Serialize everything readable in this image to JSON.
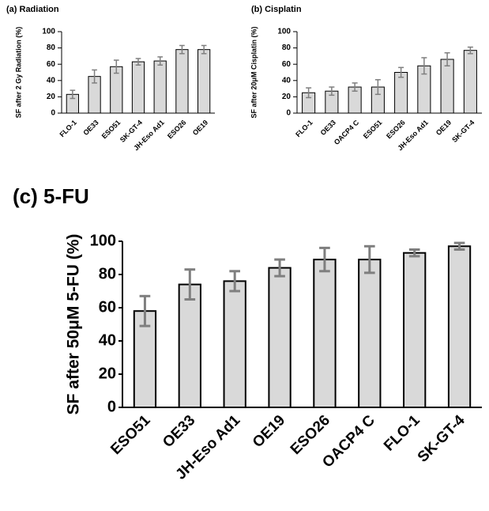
{
  "chart_data": [
    {
      "type": "bar",
      "title": "(a)  Radiation",
      "y_label": "SF after 2 Gy Radiation  (%)",
      "categories": [
        "FLO-1",
        "OE33",
        "ESO51",
        "SK-GT-4",
        "JH-Eso Ad1",
        "ESO26",
        "OE19"
      ],
      "values": [
        23,
        45,
        57,
        63,
        64,
        78,
        78
      ],
      "errors": [
        5,
        8,
        8,
        4,
        5,
        5,
        5
      ],
      "color": "#d9d9d9",
      "error_color": "#7f7f7f",
      "ylim": [
        0,
        100
      ],
      "yticks": [
        0,
        20,
        40,
        60,
        80,
        100
      ]
    },
    {
      "type": "bar",
      "title": "(b)  Cisplatin",
      "y_label": "SF after 20μM Cisplatin  (%)",
      "categories": [
        "FLO-1",
        "OE33",
        "OACP4 C",
        "ESO51",
        "ESO26",
        "JH-Eso Ad1",
        "OE19",
        "SK-GT-4"
      ],
      "values": [
        25,
        27,
        32,
        32,
        50,
        58,
        66,
        77
      ],
      "errors": [
        6,
        5,
        5,
        9,
        6,
        10,
        8,
        4
      ],
      "color": "#d9d9d9",
      "error_color": "#7f7f7f",
      "ylim": [
        0,
        100
      ],
      "yticks": [
        0,
        20,
        40,
        60,
        80,
        100
      ]
    },
    {
      "type": "bar",
      "title": "(c)  5-FU",
      "y_label": "SF after 50μM 5-FU (%)",
      "categories": [
        "ESO51",
        "OE33",
        "JH-Eso Ad1",
        "OE19",
        "ESO26",
        "OACP4 C",
        "FLO-1",
        "SK-GT-4"
      ],
      "values": [
        58,
        74,
        76,
        84,
        89,
        89,
        93,
        97
      ],
      "errors": [
        9,
        9,
        6,
        5,
        7,
        8,
        2,
        2
      ],
      "color": "#d9d9d9",
      "error_color": "#7f7f7f",
      "ylim": [
        0,
        100
      ],
      "yticks": [
        0,
        20,
        40,
        60,
        80,
        100
      ]
    }
  ]
}
